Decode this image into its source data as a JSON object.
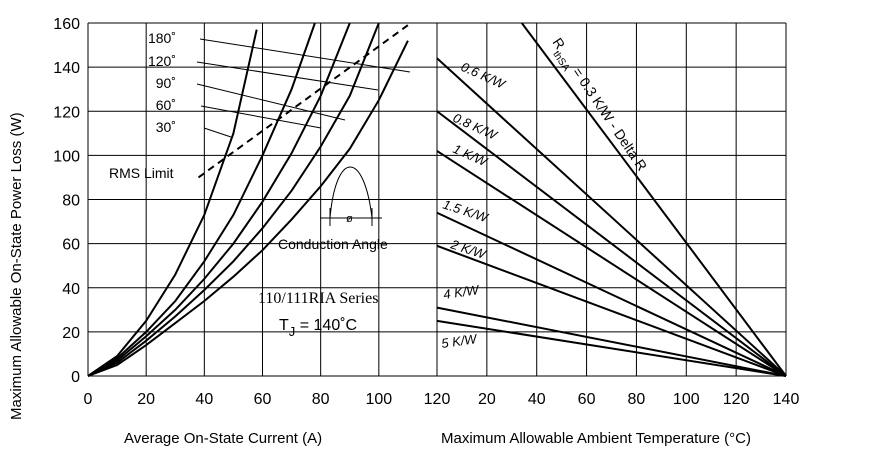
{
  "chart_data": [
    {
      "type": "line",
      "xlabel": "Average On-State Current (A)",
      "ylabel": "Maximum Allowable On-State Power Loss (W)",
      "xlim": [
        0,
        120
      ],
      "ylim": [
        0,
        160
      ],
      "x_ticks": [
        "0",
        "20",
        "40",
        "60",
        "80",
        "100",
        "120"
      ],
      "y_ticks": [
        "0",
        "20",
        "40",
        "60",
        "80",
        "100",
        "120",
        "140",
        "160"
      ],
      "grid": true,
      "series": [
        {
          "name": "180˚",
          "x": [
            0,
            10,
            20,
            30,
            40,
            50,
            58
          ],
          "y": [
            0,
            9,
            25,
            46,
            73,
            110,
            157
          ]
        },
        {
          "name": "120˚",
          "x": [
            0,
            10,
            20,
            30,
            40,
            50,
            60,
            70,
            78
          ],
          "y": [
            0,
            8,
            20,
            34,
            52,
            73,
            100,
            130,
            160
          ]
        },
        {
          "name": "90˚",
          "x": [
            0,
            10,
            20,
            30,
            40,
            50,
            60,
            70,
            80,
            90
          ],
          "y": [
            0,
            7,
            18,
            30,
            44,
            60,
            79,
            101,
            127,
            160
          ]
        },
        {
          "name": "60˚",
          "x": [
            0,
            10,
            20,
            30,
            40,
            50,
            60,
            70,
            80,
            90,
            100
          ],
          "y": [
            0,
            6,
            16,
            27,
            39,
            52,
            67,
            84,
            104,
            127,
            160
          ]
        },
        {
          "name": "30˚",
          "x": [
            0,
            10,
            20,
            30,
            40,
            50,
            60,
            70,
            80,
            90,
            100,
            110
          ],
          "y": [
            0,
            5,
            14,
            24,
            34,
            45,
            57,
            71,
            86,
            103,
            125,
            152
          ]
        },
        {
          "name": "RMS Limit",
          "x": [
            38,
            110
          ],
          "y": [
            90,
            159
          ]
        }
      ],
      "annotations": {
        "rms_limit": "RMS Limit",
        "conduction": "Conduction Angle",
        "phi": "ø",
        "series": "110/111RIA Series",
        "tj_prefix": "T",
        "tj_sub": "J",
        "tj_suffix": " = 140˚C"
      }
    },
    {
      "type": "line",
      "xlabel": "Maximum Allowable Ambient Temperature (°C)",
      "xlim": [
        0,
        140
      ],
      "ylim": [
        0,
        160
      ],
      "x_ticks": [
        "20",
        "40",
        "60",
        "80",
        "100",
        "120",
        "140"
      ],
      "grid": true,
      "series": [
        {
          "name": "0.3 K/W",
          "x": [
            34,
            140
          ],
          "y": [
            160,
            0
          ]
        },
        {
          "name": "0.6 K/W",
          "x": [
            0,
            140
          ],
          "y": [
            144,
            0
          ]
        },
        {
          "name": "0.8 K/W",
          "x": [
            0,
            140
          ],
          "y": [
            120,
            0
          ]
        },
        {
          "name": "1 K/W",
          "x": [
            0,
            140
          ],
          "y": [
            102,
            0
          ]
        },
        {
          "name": "1.5 K/W",
          "x": [
            0,
            140
          ],
          "y": [
            74,
            0
          ]
        },
        {
          "name": "2 K/W",
          "x": [
            0,
            140
          ],
          "y": [
            59,
            0
          ]
        },
        {
          "name": "4 K/W",
          "x": [
            0,
            140
          ],
          "y": [
            31,
            0
          ]
        },
        {
          "name": "5 K/W",
          "x": [
            0,
            140
          ],
          "y": [
            25,
            0
          ]
        }
      ],
      "annotations": {
        "r_main": "R",
        "r_sub": "thSA",
        "r_rest": " = 0.3 K/W - Delta R",
        "labels": [
          "0.6 K/W",
          "0.8 K/W",
          "1 K/W",
          "1.5 K/W",
          "2 K/W",
          "4 K/W",
          "5 K/W"
        ]
      }
    }
  ]
}
